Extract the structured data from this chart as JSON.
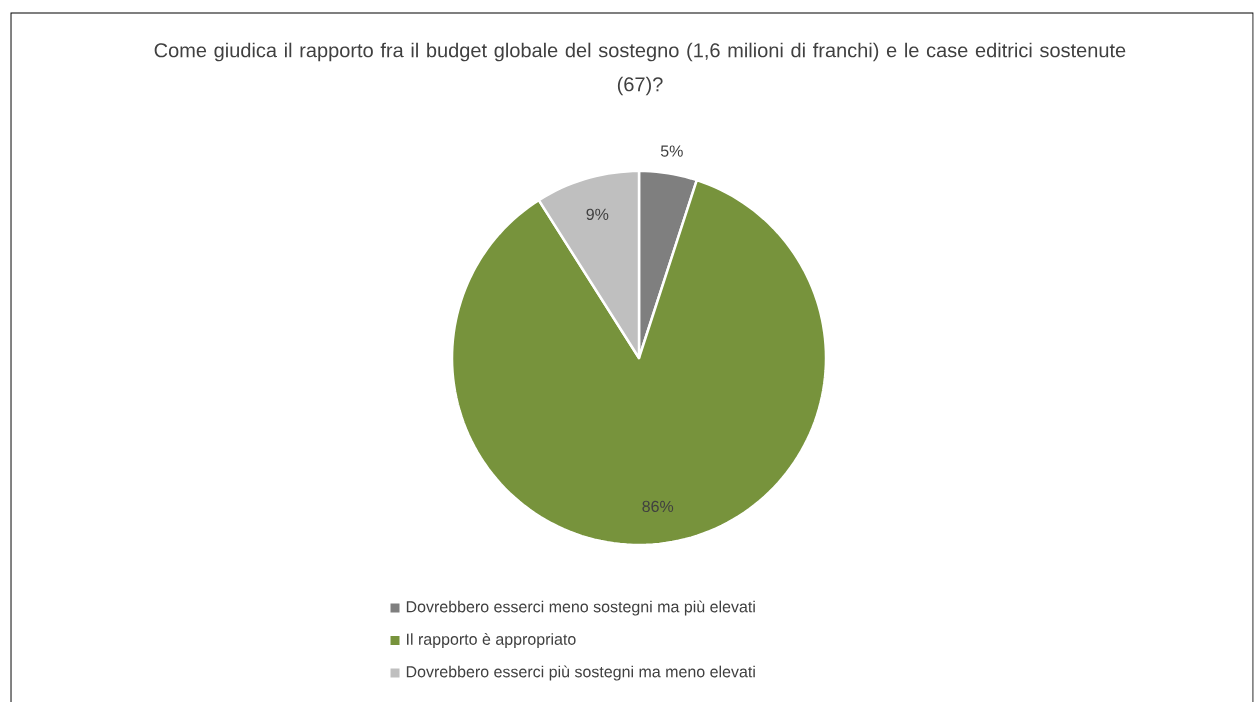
{
  "chart_data": {
    "type": "pie",
    "title": "Come giudica il rapporto fra il budget globale del sostegno (1,6 milioni di franchi) e le case editrici sostenute (67)?",
    "categories": [
      "Dovrebbero esserci meno sostegni ma più elevati",
      "Il rapporto è appropriato",
      "Dovrebbero esserci più sostegni ma meno elevati"
    ],
    "values": [
      5,
      86,
      9
    ],
    "value_labels": [
      "5%",
      "86%",
      "9%"
    ],
    "colors": [
      "#7f7f7f",
      "#77933c",
      "#bfbfbf"
    ],
    "legend": "bottom"
  }
}
